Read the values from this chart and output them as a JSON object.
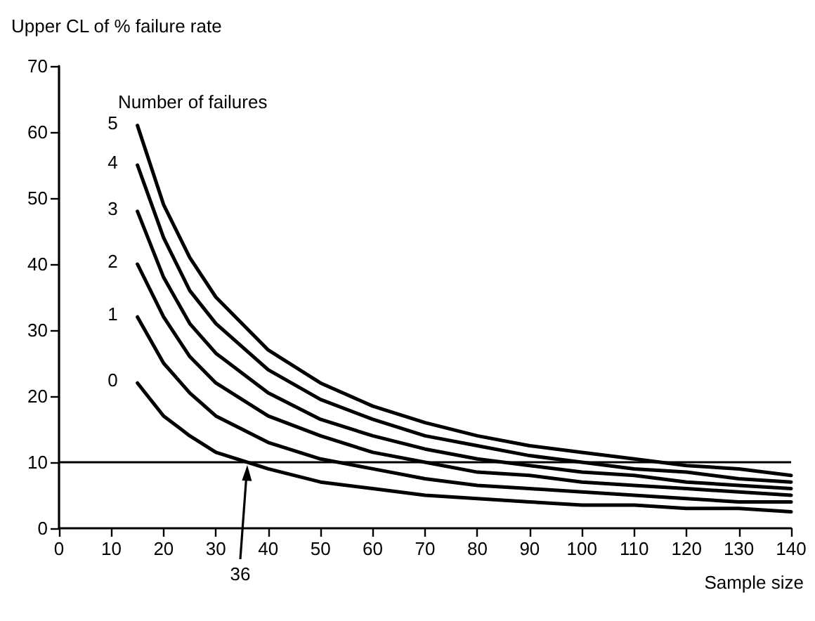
{
  "chart_data": {
    "type": "line",
    "xlabel": "Sample size",
    "ylabel": "Upper CL of % failure rate",
    "legend_title": "Number of failures",
    "x": [
      15,
      20,
      25,
      30,
      40,
      50,
      60,
      70,
      80,
      90,
      100,
      110,
      120,
      130,
      140
    ],
    "series": [
      {
        "name": "0",
        "color": "#000000",
        "values": [
          22,
          17,
          14,
          11.5,
          9,
          7,
          6,
          5,
          4.5,
          4,
          3.5,
          3.5,
          3,
          3,
          2.5
        ]
      },
      {
        "name": "1",
        "color": "#000000",
        "values": [
          32,
          25,
          20.5,
          17,
          13,
          10.5,
          9,
          7.5,
          6.5,
          6,
          5.5,
          5,
          4.5,
          4,
          4
        ]
      },
      {
        "name": "2",
        "color": "#000000",
        "values": [
          40,
          32,
          26,
          22,
          17,
          14,
          11.5,
          10,
          8.5,
          8,
          7,
          6.5,
          6,
          5.5,
          5
        ]
      },
      {
        "name": "3",
        "color": "#000000",
        "values": [
          48,
          38,
          31,
          26.5,
          20.5,
          16.5,
          14,
          12,
          10.5,
          9.5,
          8.5,
          8,
          7,
          6.5,
          6
        ]
      },
      {
        "name": "4",
        "color": "#000000",
        "values": [
          55,
          44,
          36,
          31,
          24,
          19.5,
          16.5,
          14,
          12.5,
          11,
          10,
          9,
          8.5,
          7.5,
          7
        ]
      },
      {
        "name": "5",
        "color": "#000000",
        "values": [
          61,
          49,
          41,
          35,
          27,
          22,
          18.5,
          16,
          14,
          12.5,
          11.5,
          10.5,
          9.5,
          9,
          8
        ]
      }
    ],
    "xlim": [
      0,
      140
    ],
    "xticks": [
      0,
      10,
      20,
      30,
      40,
      50,
      60,
      70,
      80,
      90,
      100,
      110,
      120,
      130,
      140
    ],
    "ylim": [
      0,
      70
    ],
    "yticks": [
      0,
      10,
      20,
      30,
      40,
      50,
      60,
      70
    ],
    "ref_lines": [
      {
        "axis": "y",
        "value": 10,
        "color": "#000000"
      }
    ],
    "annotations": [
      "36"
    ],
    "grid": false,
    "legend": false,
    "marker": "none",
    "line_style": "solid"
  }
}
